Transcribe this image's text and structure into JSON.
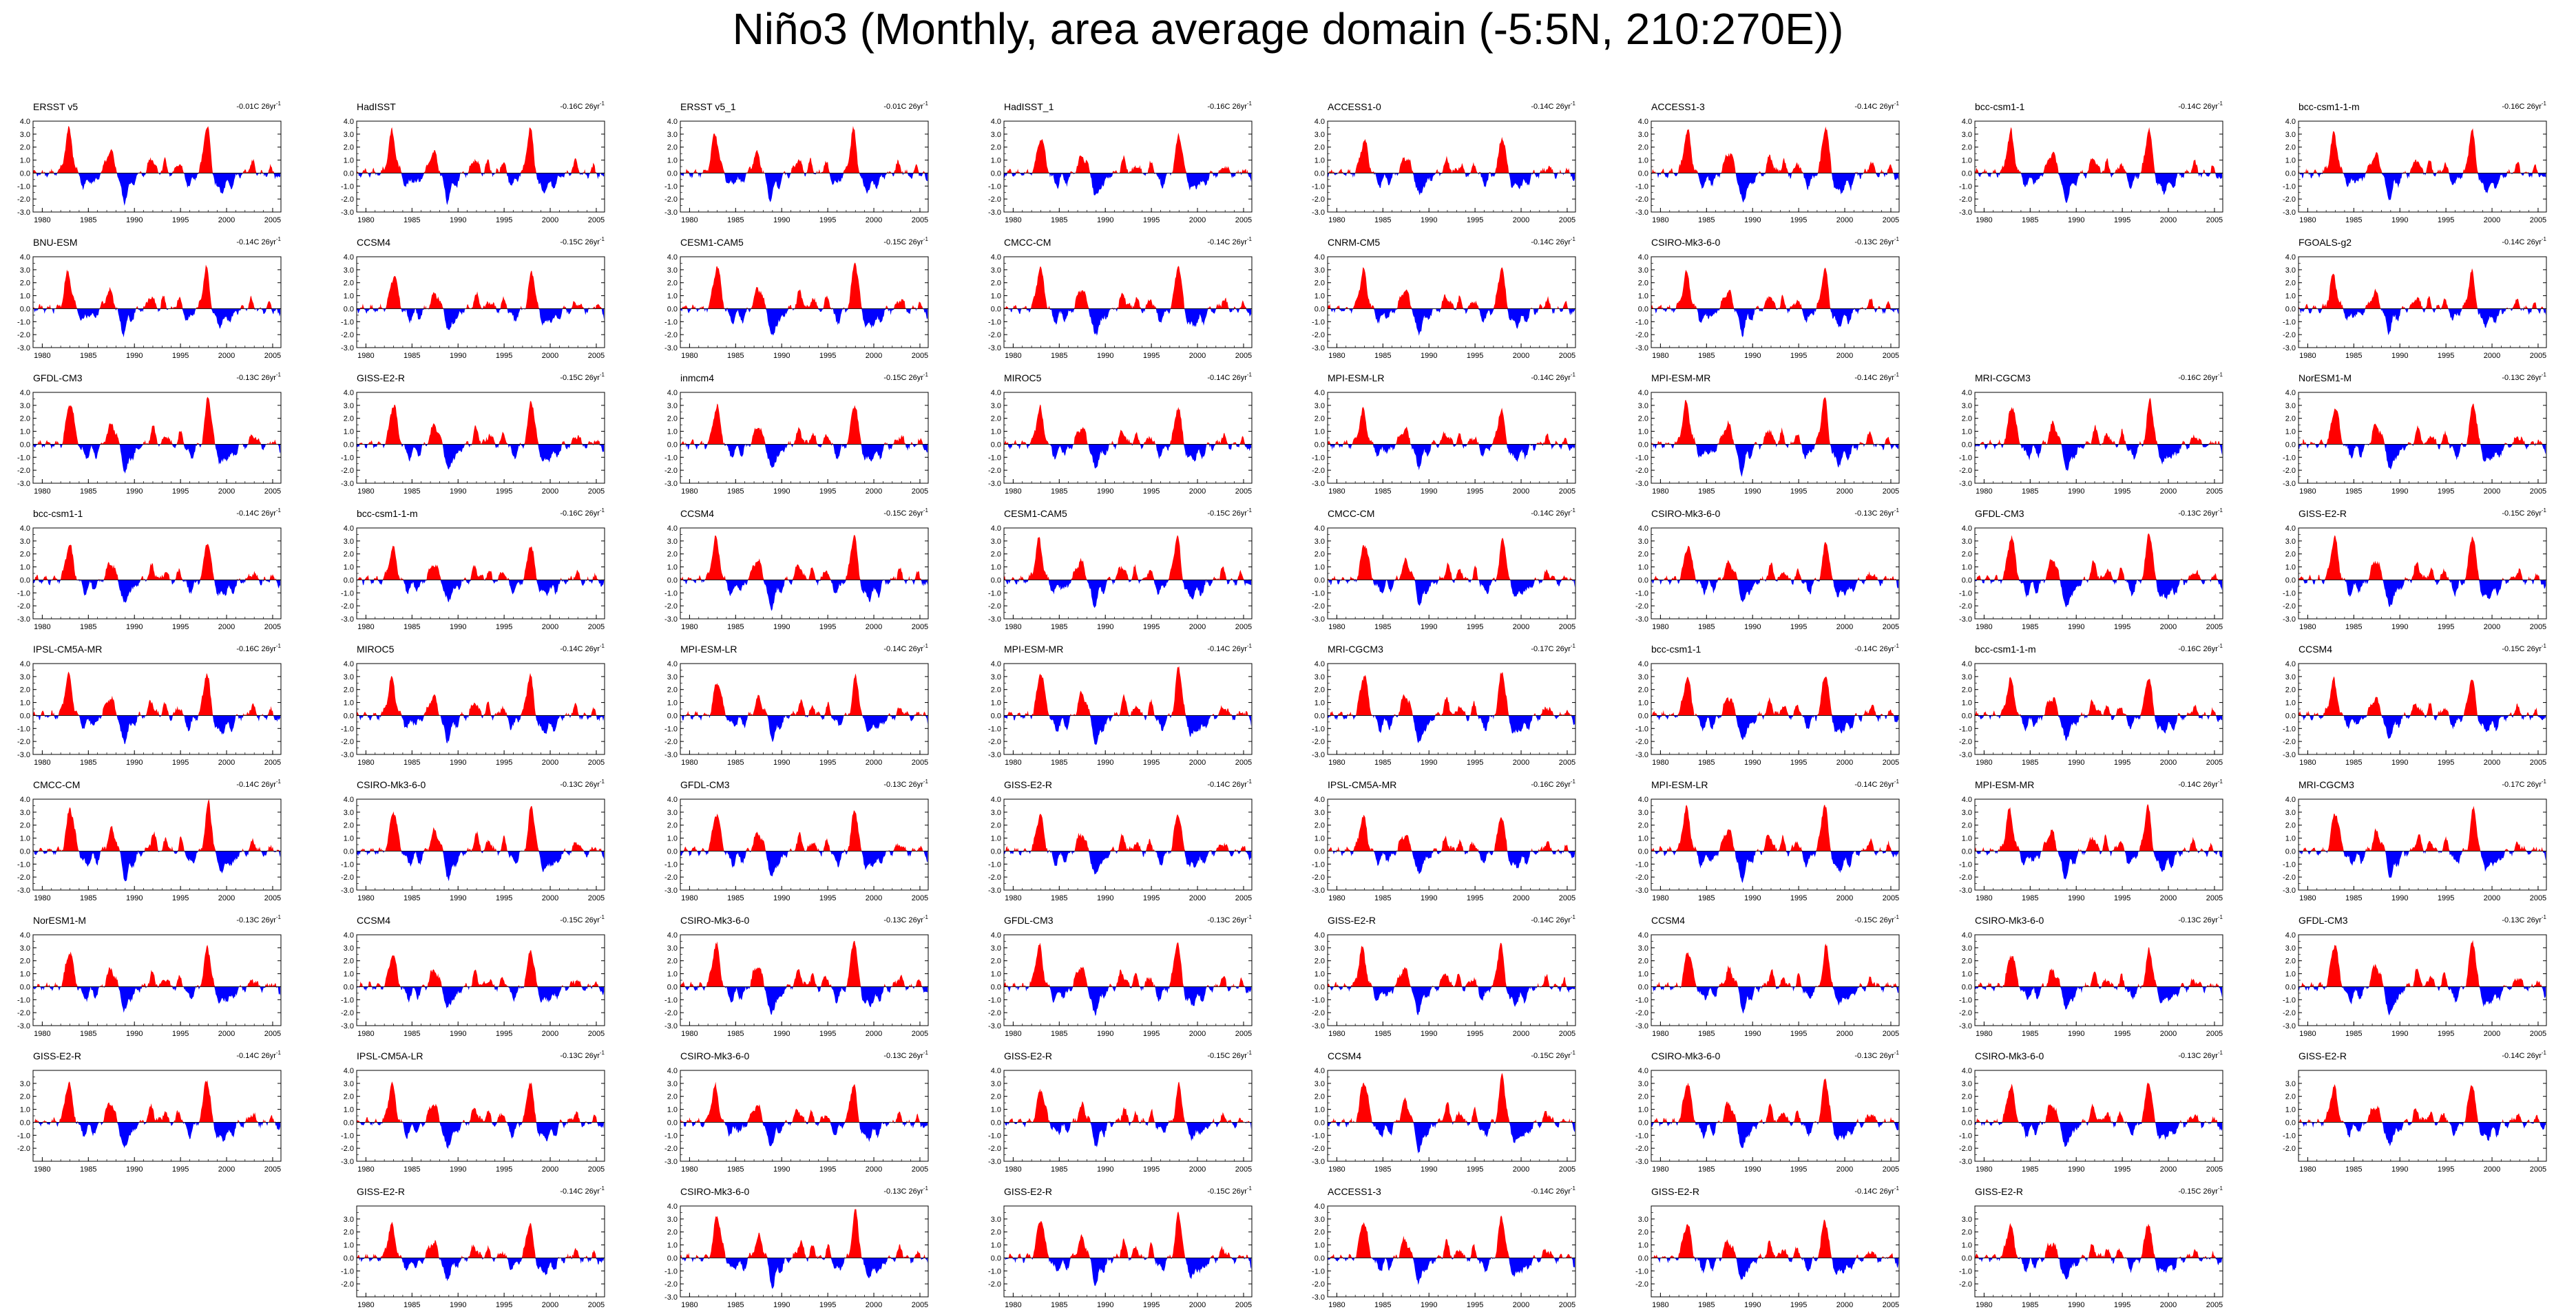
{
  "title": "Niño3 (Monthly, area average domain (-5:5N, 210:270E))",
  "colors": {
    "positive": "#ff0000",
    "negative": "#0000ff",
    "axis": "#000000"
  },
  "trend_unit_suffix": "C 26yr",
  "trend_unit_exponent": "-1",
  "xtick_labels": [
    "1980",
    "1985",
    "1990",
    "1995",
    "2000",
    "2005"
  ],
  "chart_data": {
    "type": "area",
    "x_range": [
      1979,
      2005.9
    ],
    "xticks": [
      1980,
      1985,
      1990,
      1995,
      2000,
      2005
    ],
    "ylim": [
      -3.0,
      4.0
    ],
    "yticks_default": [
      "4.0",
      "3.0",
      "2.0",
      "1.0",
      "0.0",
      "-1.0",
      "-2.0",
      "-3.0"
    ],
    "yticks_short": [
      "3.0",
      "2.0",
      "1.0",
      "0.0",
      "-1.0",
      "-2.0"
    ],
    "reference_line": 0,
    "fill_above": "red",
    "fill_below": "blue",
    "anomaly_events": [
      {
        "t": 1982.9,
        "amp": 3.0,
        "w": 0.55
      },
      {
        "t": 1984.6,
        "amp": -0.9,
        "w": 0.5
      },
      {
        "t": 1985.7,
        "amp": -0.7,
        "w": 0.4
      },
      {
        "t": 1987.4,
        "amp": 1.5,
        "w": 0.6
      },
      {
        "t": 1988.9,
        "amp": -2.0,
        "w": 0.45
      },
      {
        "t": 1989.8,
        "amp": -0.8,
        "w": 0.4
      },
      {
        "t": 1991.9,
        "amp": 1.2,
        "w": 0.45
      },
      {
        "t": 1993.3,
        "amp": 0.9,
        "w": 0.35
      },
      {
        "t": 1994.9,
        "amp": 0.9,
        "w": 0.35
      },
      {
        "t": 1996.0,
        "amp": -0.8,
        "w": 0.5
      },
      {
        "t": 1997.9,
        "amp": 3.4,
        "w": 0.5
      },
      {
        "t": 1999.4,
        "amp": -1.2,
        "w": 0.8
      },
      {
        "t": 2000.6,
        "amp": -0.7,
        "w": 0.4
      },
      {
        "t": 2002.8,
        "amp": 0.8,
        "w": 0.45
      },
      {
        "t": 2004.8,
        "amp": 0.5,
        "w": 0.3
      },
      {
        "t": 2005.8,
        "amp": -0.4,
        "w": 0.2
      }
    ],
    "panels": [
      {
        "row": 0,
        "col": 0,
        "name": "ERSST v5",
        "trend": "-0.01"
      },
      {
        "row": 0,
        "col": 1,
        "name": "HadISST",
        "trend": "-0.16"
      },
      {
        "row": 0,
        "col": 2,
        "name": "ERSST v5_1",
        "trend": "-0.01"
      },
      {
        "row": 0,
        "col": 3,
        "name": "HadISST_1",
        "trend": "-0.16"
      },
      {
        "row": 0,
        "col": 4,
        "name": "ACCESS1-0",
        "trend": "-0.14"
      },
      {
        "row": 0,
        "col": 5,
        "name": "ACCESS1-3",
        "trend": "-0.14"
      },
      {
        "row": 0,
        "col": 6,
        "name": "bcc-csm1-1",
        "trend": "-0.14"
      },
      {
        "row": 0,
        "col": 7,
        "name": "bcc-csm1-1-m",
        "trend": "-0.16"
      },
      {
        "row": 1,
        "col": 0,
        "name": "BNU-ESM",
        "trend": "-0.14"
      },
      {
        "row": 1,
        "col": 1,
        "name": "CCSM4",
        "trend": "-0.15"
      },
      {
        "row": 1,
        "col": 2,
        "name": "CESM1-CAM5",
        "trend": "-0.15"
      },
      {
        "row": 1,
        "col": 3,
        "name": "CMCC-CM",
        "trend": "-0.14"
      },
      {
        "row": 1,
        "col": 4,
        "name": "CNRM-CM5",
        "trend": "-0.14"
      },
      {
        "row": 1,
        "col": 5,
        "name": "CSIRO-Mk3-6-0",
        "trend": "-0.13"
      },
      {
        "row": 1,
        "col": 7,
        "name": "FGOALS-g2",
        "trend": "-0.14"
      },
      {
        "row": 2,
        "col": 0,
        "name": "GFDL-CM3",
        "trend": "-0.13"
      },
      {
        "row": 2,
        "col": 1,
        "name": "GISS-E2-R",
        "trend": "-0.15"
      },
      {
        "row": 2,
        "col": 2,
        "name": "inmcm4",
        "trend": "-0.15"
      },
      {
        "row": 2,
        "col": 3,
        "name": "MIROC5",
        "trend": "-0.14"
      },
      {
        "row": 2,
        "col": 4,
        "name": "MPI-ESM-LR",
        "trend": "-0.14"
      },
      {
        "row": 2,
        "col": 5,
        "name": "MPI-ESM-MR",
        "trend": "-0.14"
      },
      {
        "row": 2,
        "col": 6,
        "name": "MRI-CGCM3",
        "trend": "-0.16"
      },
      {
        "row": 2,
        "col": 7,
        "name": "NorESM1-M",
        "trend": "-0.13"
      },
      {
        "row": 3,
        "col": 0,
        "name": "bcc-csm1-1",
        "trend": "-0.14"
      },
      {
        "row": 3,
        "col": 1,
        "name": "bcc-csm1-1-m",
        "trend": "-0.16"
      },
      {
        "row": 3,
        "col": 2,
        "name": "CCSM4",
        "trend": "-0.15"
      },
      {
        "row": 3,
        "col": 3,
        "name": "CESM1-CAM5",
        "trend": "-0.15"
      },
      {
        "row": 3,
        "col": 4,
        "name": "CMCC-CM",
        "trend": "-0.14"
      },
      {
        "row": 3,
        "col": 5,
        "name": "CSIRO-Mk3-6-0",
        "trend": "-0.13"
      },
      {
        "row": 3,
        "col": 6,
        "name": "GFDL-CM3",
        "trend": "-0.13"
      },
      {
        "row": 3,
        "col": 7,
        "name": "GISS-E2-R",
        "trend": "-0.15"
      },
      {
        "row": 4,
        "col": 0,
        "name": "IPSL-CM5A-MR",
        "trend": "-0.16"
      },
      {
        "row": 4,
        "col": 1,
        "name": "MIROC5",
        "trend": "-0.14"
      },
      {
        "row": 4,
        "col": 2,
        "name": "MPI-ESM-LR",
        "trend": "-0.14"
      },
      {
        "row": 4,
        "col": 3,
        "name": "MPI-ESM-MR",
        "trend": "-0.14"
      },
      {
        "row": 4,
        "col": 4,
        "name": "MRI-CGCM3",
        "trend": "-0.17"
      },
      {
        "row": 4,
        "col": 5,
        "name": "bcc-csm1-1",
        "trend": "-0.14"
      },
      {
        "row": 4,
        "col": 6,
        "name": "bcc-csm1-1-m",
        "trend": "-0.16"
      },
      {
        "row": 4,
        "col": 7,
        "name": "CCSM4",
        "trend": "-0.15"
      },
      {
        "row": 5,
        "col": 0,
        "name": "CMCC-CM",
        "trend": "-0.14"
      },
      {
        "row": 5,
        "col": 1,
        "name": "CSIRO-Mk3-6-0",
        "trend": "-0.13"
      },
      {
        "row": 5,
        "col": 2,
        "name": "GFDL-CM3",
        "trend": "-0.13"
      },
      {
        "row": 5,
        "col": 3,
        "name": "GISS-E2-R",
        "trend": "-0.14"
      },
      {
        "row": 5,
        "col": 4,
        "name": "IPSL-CM5A-MR",
        "trend": "-0.16"
      },
      {
        "row": 5,
        "col": 5,
        "name": "MPI-ESM-LR",
        "trend": "-0.14"
      },
      {
        "row": 5,
        "col": 6,
        "name": "MPI-ESM-MR",
        "trend": "-0.14"
      },
      {
        "row": 5,
        "col": 7,
        "name": "MRI-CGCM3",
        "trend": "-0.17"
      },
      {
        "row": 6,
        "col": 0,
        "name": "NorESM1-M",
        "trend": "-0.13"
      },
      {
        "row": 6,
        "col": 1,
        "name": "CCSM4",
        "trend": "-0.15"
      },
      {
        "row": 6,
        "col": 2,
        "name": "CSIRO-Mk3-6-0",
        "trend": "-0.13"
      },
      {
        "row": 6,
        "col": 3,
        "name": "GFDL-CM3",
        "trend": "-0.13"
      },
      {
        "row": 6,
        "col": 4,
        "name": "GISS-E2-R",
        "trend": "-0.14"
      },
      {
        "row": 6,
        "col": 5,
        "name": "CCSM4",
        "trend": "-0.15"
      },
      {
        "row": 6,
        "col": 6,
        "name": "CSIRO-Mk3-6-0",
        "trend": "-0.13"
      },
      {
        "row": 6,
        "col": 7,
        "name": "GFDL-CM3",
        "trend": "-0.13"
      },
      {
        "row": 7,
        "col": 0,
        "name": "GISS-E2-R",
        "trend": "-0.14",
        "short_axis": true
      },
      {
        "row": 7,
        "col": 1,
        "name": "IPSL-CM5A-LR",
        "trend": "-0.13"
      },
      {
        "row": 7,
        "col": 2,
        "name": "CSIRO-Mk3-6-0",
        "trend": "-0.13"
      },
      {
        "row": 7,
        "col": 3,
        "name": "GISS-E2-R",
        "trend": "-0.15"
      },
      {
        "row": 7,
        "col": 4,
        "name": "CCSM4",
        "trend": "-0.15"
      },
      {
        "row": 7,
        "col": 5,
        "name": "CSIRO-Mk3-6-0",
        "trend": "-0.13"
      },
      {
        "row": 7,
        "col": 6,
        "name": "CSIRO-Mk3-6-0",
        "trend": "-0.13"
      },
      {
        "row": 7,
        "col": 7,
        "name": "GISS-E2-R",
        "trend": "-0.14",
        "short_axis": true
      },
      {
        "row": 8,
        "col": 1,
        "name": "GISS-E2-R",
        "trend": "-0.14",
        "short_axis": true
      },
      {
        "row": 8,
        "col": 2,
        "name": "CSIRO-Mk3-6-0",
        "trend": "-0.13"
      },
      {
        "row": 8,
        "col": 3,
        "name": "GISS-E2-R",
        "trend": "-0.15",
        "short_axis": true
      },
      {
        "row": 8,
        "col": 4,
        "name": "ACCESS1-3",
        "trend": "-0.14"
      },
      {
        "row": 8,
        "col": 5,
        "name": "GISS-E2-R",
        "trend": "-0.14",
        "short_axis": true
      },
      {
        "row": 8,
        "col": 6,
        "name": "GISS-E2-R",
        "trend": "-0.15",
        "short_axis": true
      }
    ]
  }
}
